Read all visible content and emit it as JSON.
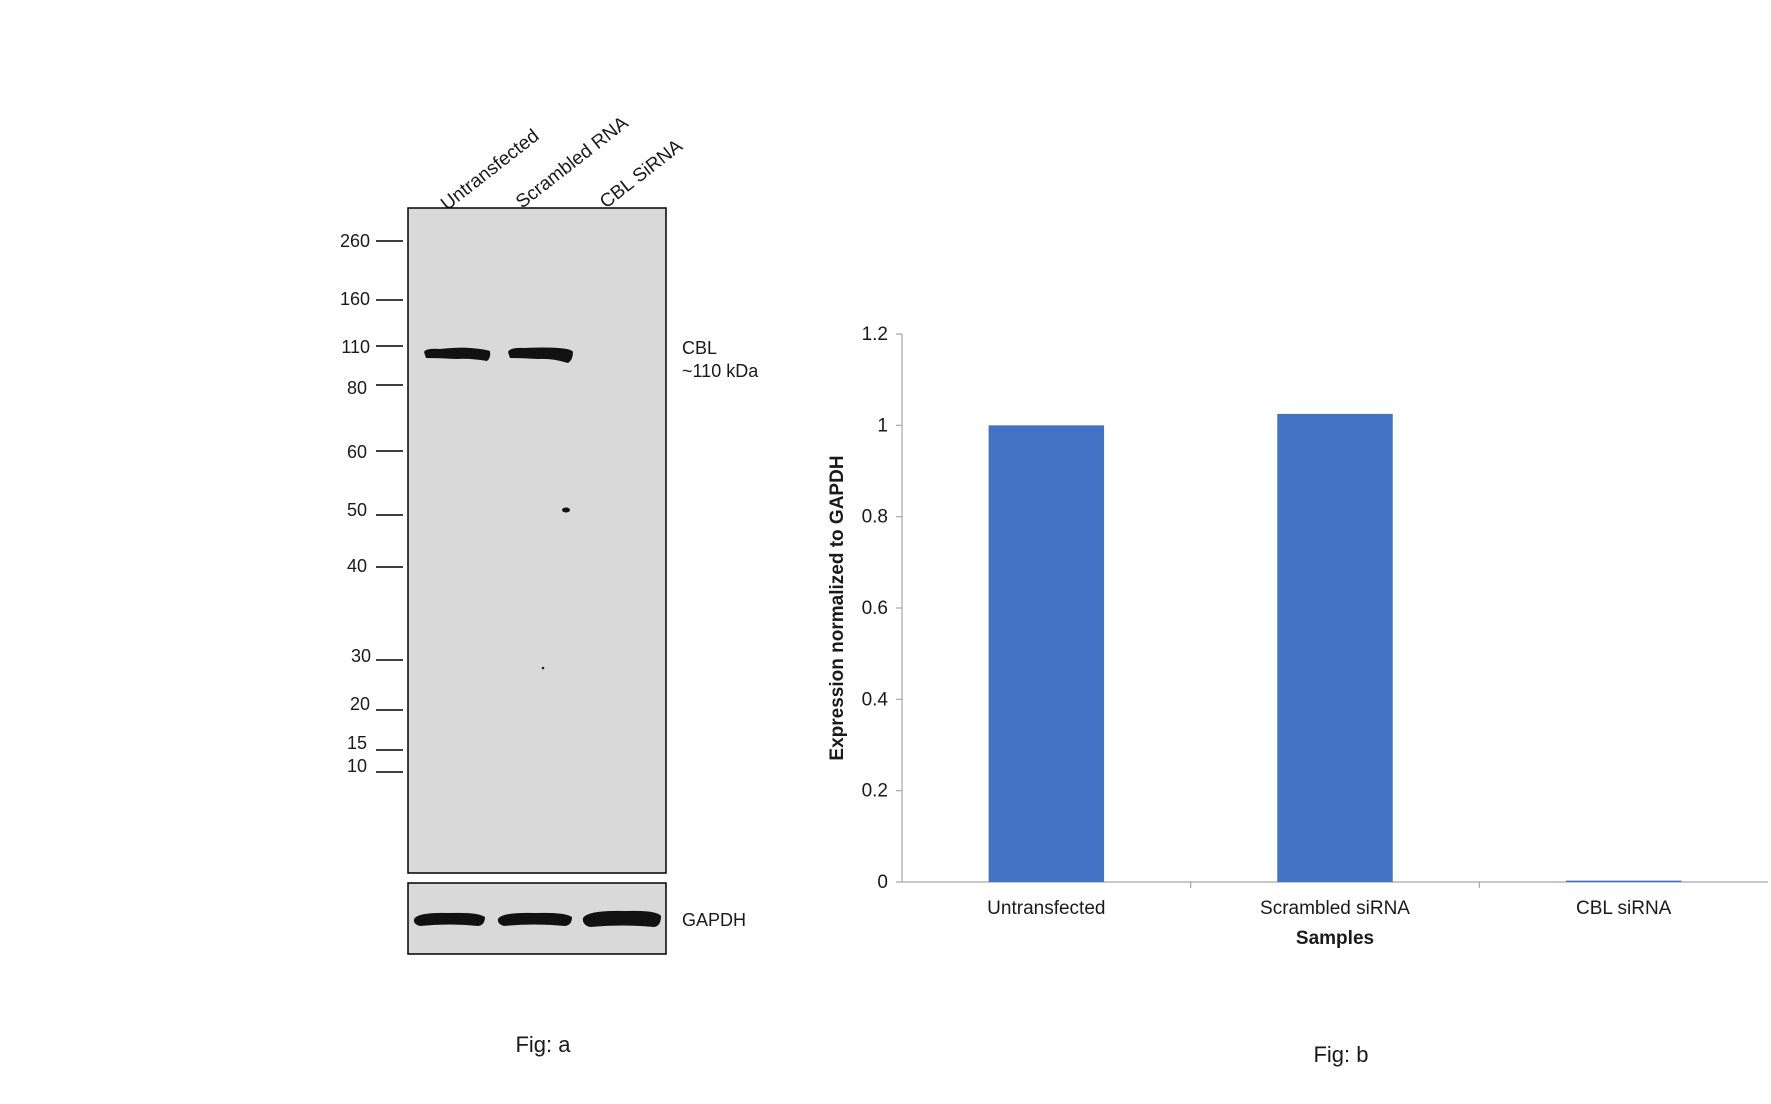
{
  "figure_a": {
    "caption": "Fig: a",
    "lane_labels": [
      "Untransfected",
      "Scrambled RNA",
      "CBL SiRNA"
    ],
    "markers": [
      "260",
      "160",
      "110",
      "80",
      "60",
      "50",
      "40",
      "30",
      "20",
      "15",
      "10"
    ],
    "band_label": "CBL",
    "band_size": "~110 kDa",
    "loading_control": "GAPDH",
    "membrane_color": "#d9d9d9",
    "band_color": "#111111"
  },
  "figure_b": {
    "caption": "Fig: b"
  },
  "chart_data": {
    "type": "bar",
    "title": "",
    "categories": [
      "Untransfected",
      "Scrambled siRNA",
      "CBL siRNA"
    ],
    "values": [
      1.0,
      1.025,
      0.003
    ],
    "xlabel": "Samples",
    "ylabel": "Expression normalized to GAPDH",
    "ylim": [
      0,
      1.2
    ],
    "yticks": [
      "0",
      "0.2",
      "0.4",
      "0.6",
      "0.8",
      "1",
      "1.2"
    ],
    "grid": false,
    "legend": "none",
    "bar_color": "#4472c4"
  }
}
